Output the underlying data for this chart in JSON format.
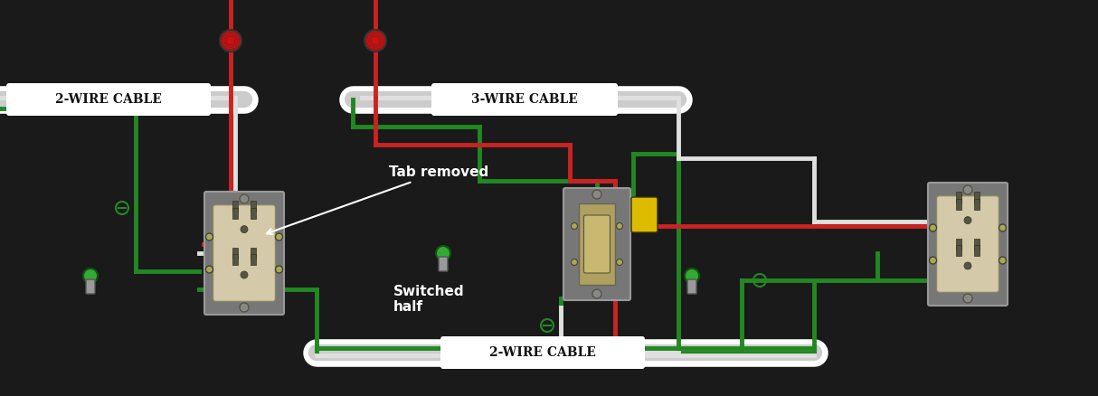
{
  "bg_color": "#1a1a1a",
  "wire_colors": {
    "black": "#1a1a1a",
    "white": "#e0e0e0",
    "red": "#cc2222",
    "green": "#228822",
    "dark_green": "#1a6e1a"
  },
  "label_2wire_top": "2-WIRE CABLE",
  "label_3wire": "3-WIRE CABLE",
  "label_2wire_bottom": "2-WIRE CABLE",
  "label_tab_removed": "Tab removed",
  "label_switched_half": "Switched\nhalf",
  "font_color_labels": "#ffffff",
  "font_color_cable_labels": "#111111",
  "receptacle_color": "#d4c9a8",
  "switch_color": "#b8a870",
  "metal_color": "#999999",
  "screw_color": "#888888",
  "wire_cap_red": "#cc0000",
  "wire_cap_gray": "#888888"
}
